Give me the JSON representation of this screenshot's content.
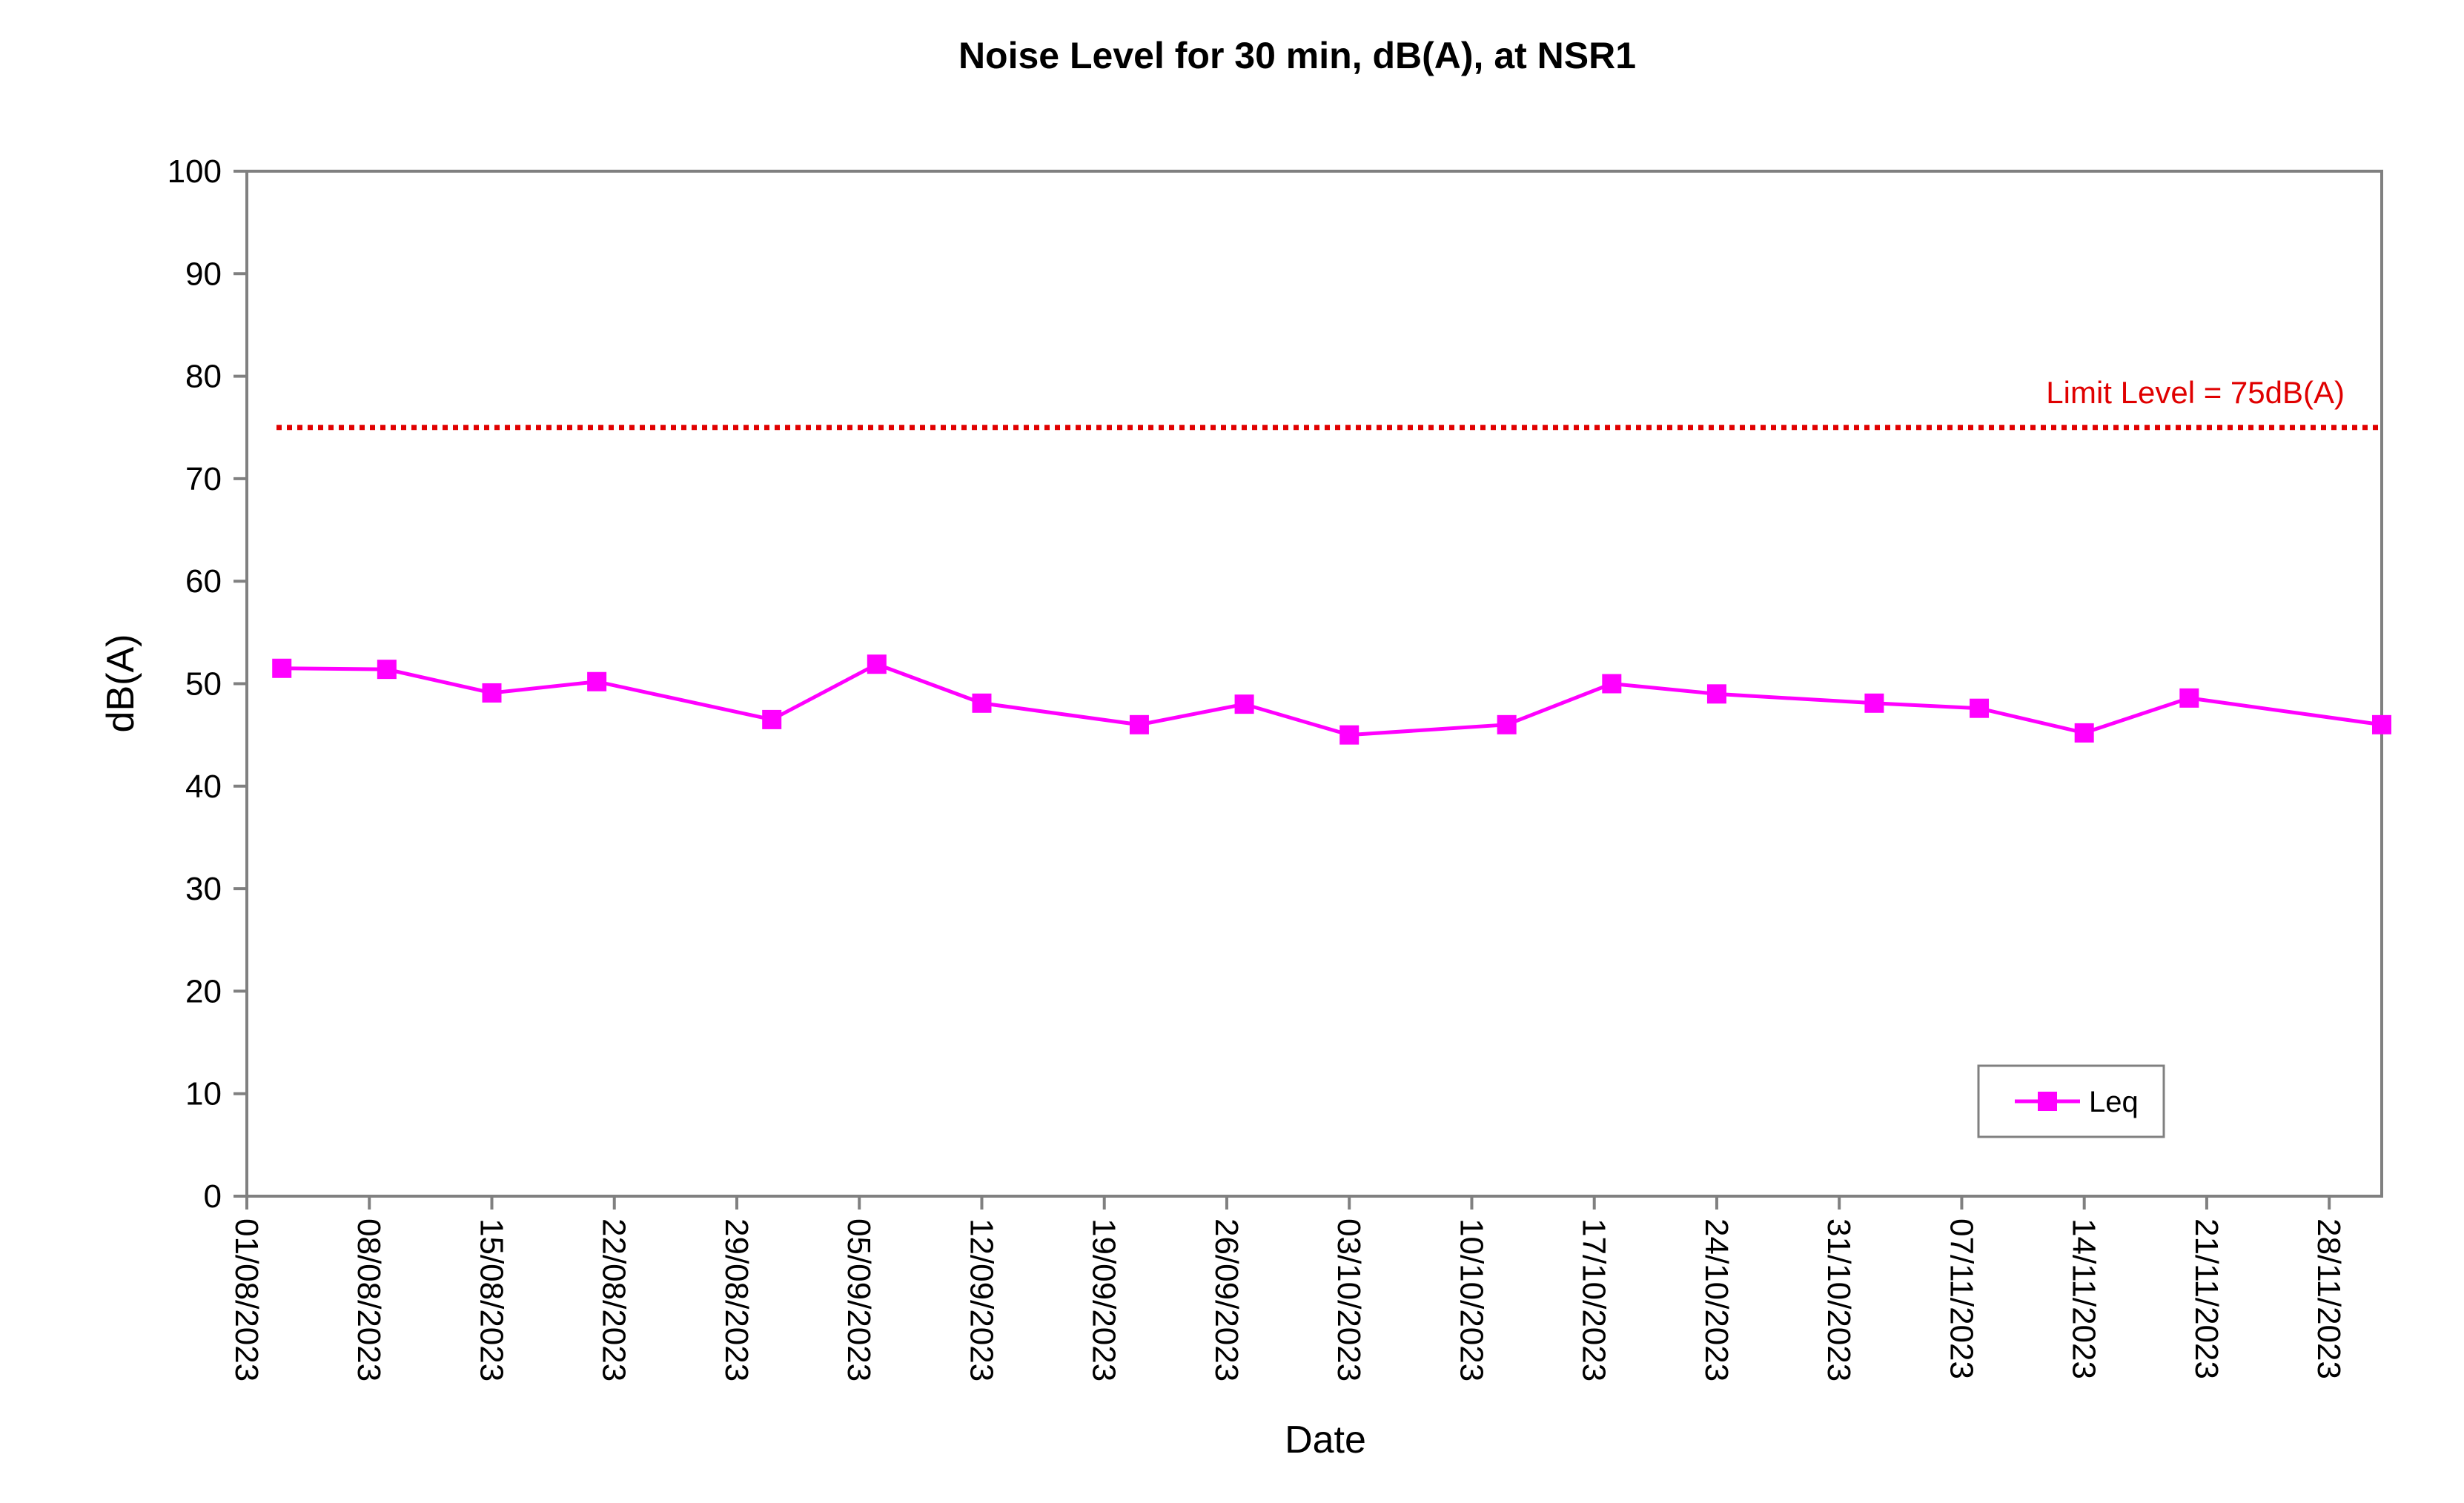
{
  "chart_data": {
    "type": "line",
    "title": "Noise Level for 30 min, dB(A), at NSR1",
    "xlabel": "Date",
    "ylabel": "dB(A)",
    "ylim": [
      0,
      100
    ],
    "yticks": [
      0,
      10,
      20,
      30,
      40,
      50,
      60,
      70,
      80,
      90,
      100
    ],
    "xlim": [
      "2023-08-01",
      "2023-12-01"
    ],
    "xticks": [
      "01/08/2023",
      "08/08/2023",
      "15/08/2023",
      "22/08/2023",
      "29/08/2023",
      "05/09/2023",
      "12/09/2023",
      "19/09/2023",
      "26/09/2023",
      "03/10/2023",
      "10/10/2023",
      "17/10/2023",
      "24/10/2023",
      "31/10/2023",
      "07/11/2023",
      "14/11/2023",
      "21/11/2023",
      "28/11/2023"
    ],
    "grid": false,
    "legend_position": "bottom-right",
    "series": [
      {
        "name": "Leq",
        "color": "#ff00ff",
        "marker": "square",
        "x": [
          "2023-08-03",
          "2023-08-09",
          "2023-08-15",
          "2023-08-21",
          "2023-08-31",
          "2023-09-06",
          "2023-09-12",
          "2023-09-21",
          "2023-09-27",
          "2023-10-03",
          "2023-10-12",
          "2023-10-18",
          "2023-10-24",
          "2023-11-02",
          "2023-11-08",
          "2023-11-14",
          "2023-11-20",
          "2023-12-01"
        ],
        "y": [
          51.5,
          51.4,
          49.1,
          50.2,
          46.5,
          51.9,
          48.1,
          46.0,
          48.0,
          45.0,
          46.0,
          50.0,
          49.0,
          48.1,
          47.6,
          45.2,
          48.6,
          46.0
        ]
      }
    ],
    "reference_line": {
      "value": 75,
      "label": "Limit Level = 75dB(A)",
      "color": "#e00000",
      "style": "dotted"
    }
  }
}
